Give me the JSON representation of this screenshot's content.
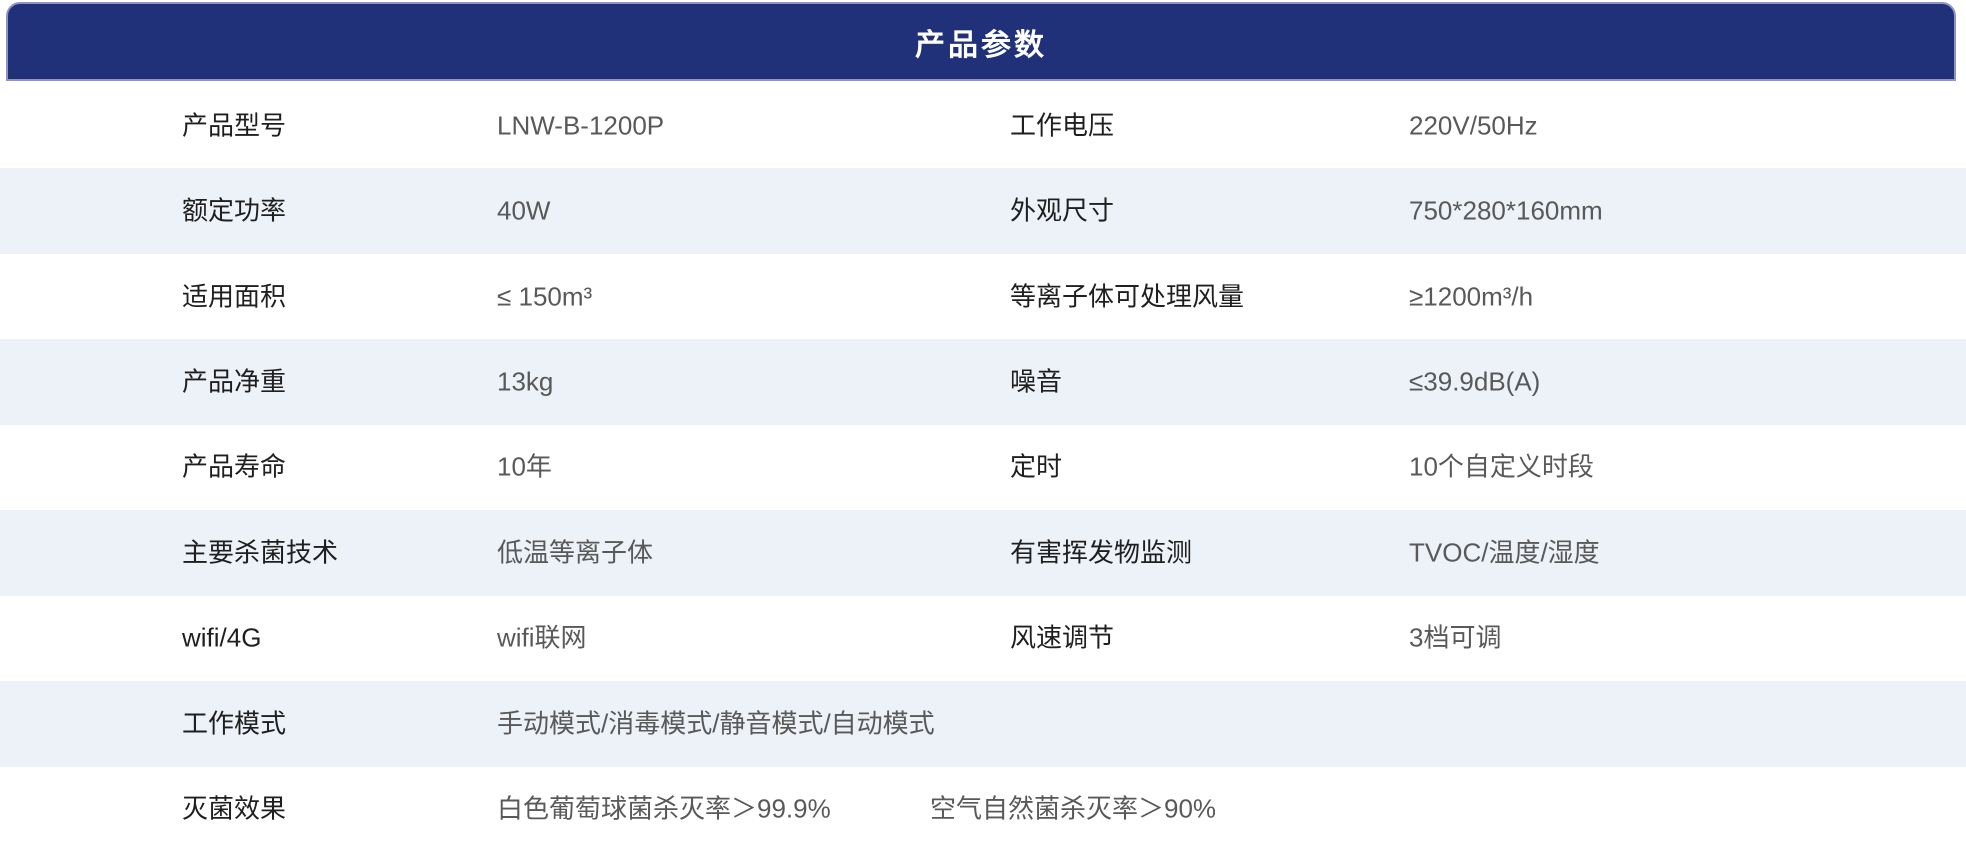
{
  "header": {
    "title": "产品参数"
  },
  "colors": {
    "header_bg": "#203079",
    "header_border": "#9094C3",
    "title_text": "#FFFFFF",
    "row_bg": "#FFFFFF",
    "row_alt_bg": "#EDF1F8",
    "label_text": "#1F1F1F",
    "value_text": "#595959"
  },
  "table": {
    "rows": [
      {
        "cells": [
          {
            "label": "产品型号",
            "value": "LNW-B-1200P"
          },
          {
            "label": "工作电压",
            "value": "220V/50Hz"
          }
        ]
      },
      {
        "cells": [
          {
            "label": "额定功率",
            "value": "40W"
          },
          {
            "label": "外观尺寸",
            "value": "750*280*160mm"
          }
        ]
      },
      {
        "cells": [
          {
            "label": "适用面积",
            "value": "≤ 150m³"
          },
          {
            "label": "等离子体可处理风量",
            "value": "≥1200m³/h"
          }
        ]
      },
      {
        "cells": [
          {
            "label": "产品净重",
            "value": "13kg"
          },
          {
            "label": "噪音",
            "value": "≤39.9dB(A)"
          }
        ]
      },
      {
        "cells": [
          {
            "label": "产品寿命",
            "value": "10年"
          },
          {
            "label": "定时",
            "value": "10个自定义时段"
          }
        ]
      },
      {
        "cells": [
          {
            "label": "主要杀菌技术",
            "value": "低温等离子体"
          },
          {
            "label": "有害挥发物监测",
            "value": "TVOC/温度/湿度"
          }
        ]
      },
      {
        "cells": [
          {
            "label": "wifi/4G",
            "value": "wifi联网"
          },
          {
            "label": "风速调节",
            "value": "3档可调"
          }
        ]
      },
      {
        "cells": [
          {
            "label": "工作模式",
            "value": "手动模式/消毒模式/静音模式/自动模式"
          }
        ]
      },
      {
        "cells": [
          {
            "label": "灭菌效果",
            "value": "白色葡萄球菌杀灭率＞99.9%",
            "value2": "空气自然菌杀灭率＞90%"
          }
        ]
      }
    ]
  }
}
